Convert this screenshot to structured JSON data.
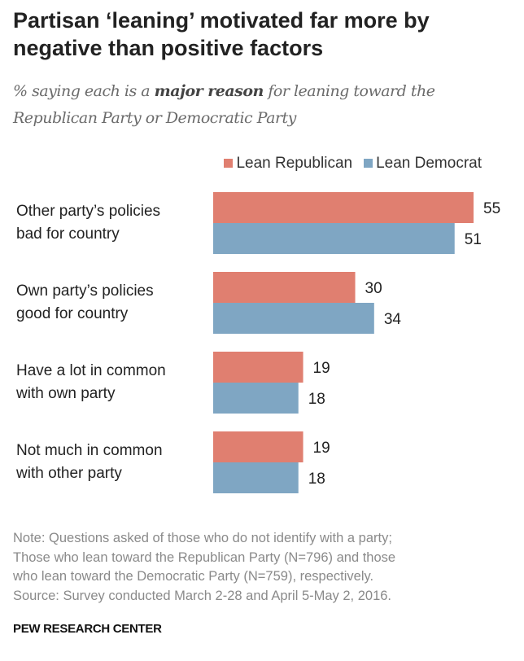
{
  "chart_data": {
    "type": "bar",
    "orientation": "horizontal",
    "title": "Partisan ‘leaning’ motivated far more by negative than positive factors",
    "subtitle_parts": [
      "% saying each is a ",
      "major reason",
      " for leaning toward the Republican Party or Democratic Party"
    ],
    "categories": [
      [
        "Other party’s policies",
        "bad for country"
      ],
      [
        "Own party’s policies",
        "good for country"
      ],
      [
        "Have a lot in common",
        "with own party"
      ],
      [
        "Not much in common",
        "with other party"
      ]
    ],
    "series": [
      {
        "name": "Lean Republican",
        "color": "#E07F70",
        "values": [
          55,
          30,
          19,
          19
        ]
      },
      {
        "name": "Lean Democrat",
        "color": "#7FA6C3",
        "values": [
          51,
          34,
          18,
          18
        ]
      }
    ],
    "xlim": [
      0,
      60
    ],
    "grid": false,
    "legend_placement": "top-right"
  },
  "note": [
    "Note: Questions asked of those who do not identify with a party;",
    "Those who lean toward the Republican Party (N=796) and those",
    "who lean toward the Democratic Party (N=759), respectively.",
    "Source: Survey conducted March 2-28 and April 5-May 2, 2016."
  ],
  "brand": "PEW RESEARCH CENTER"
}
